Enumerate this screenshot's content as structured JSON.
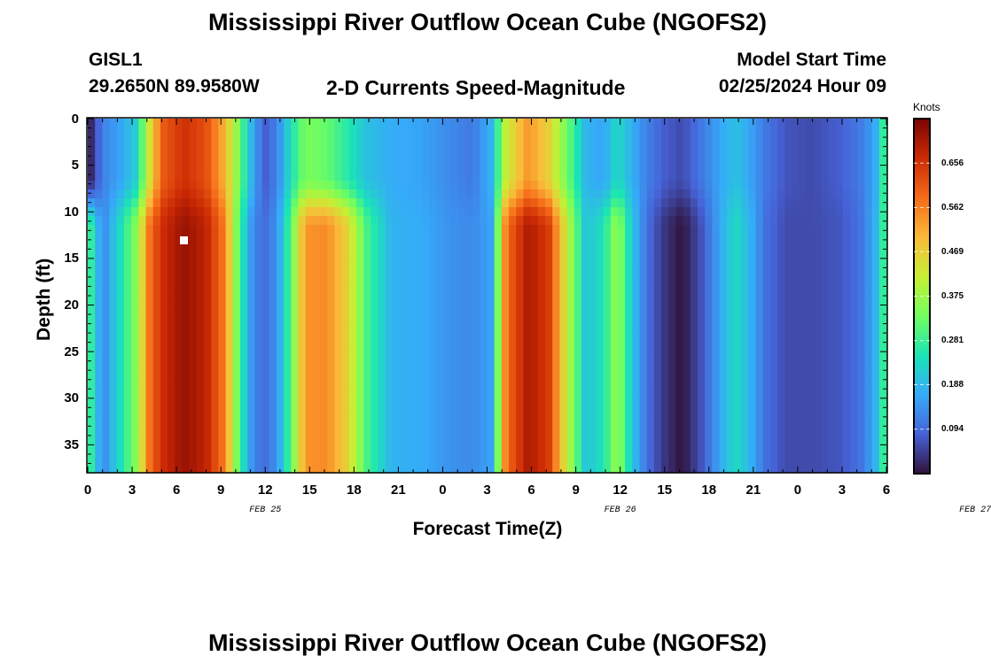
{
  "chart_data": {
    "type": "heatmap",
    "title": "Mississippi River Outflow Ocean Cube (NGOFS2)",
    "subtitle": "2-D Currents Speed-Magnitude",
    "station": "GISL1",
    "location": "29.2650N  89.9580W",
    "model_start_label": "Model Start Time",
    "model_start_value": "02/25/2024 Hour 09",
    "xlabel": "Forecast Time(Z)",
    "ylabel": "Depth (ft)",
    "x_range_hours": [
      0,
      54
    ],
    "y_range_ft": [
      0,
      38
    ],
    "x_tick_labels": [
      "0",
      "3",
      "6",
      "9",
      "12",
      "15",
      "18",
      "21",
      "0",
      "3",
      "6",
      "9",
      "12",
      "15",
      "18",
      "21",
      "0",
      "3",
      "6"
    ],
    "y_tick_labels": [
      "0",
      "5",
      "10",
      "15",
      "20",
      "25",
      "30",
      "35"
    ],
    "day_labels": [
      "FEB 25",
      "FEB 26",
      "FEB 27"
    ],
    "colorbar": {
      "units": "Knots",
      "range": [
        0.0,
        0.75
      ],
      "tick_labels": [
        "0.656",
        "0.562",
        "0.469",
        "0.375",
        "0.281",
        "0.188",
        "0.094"
      ]
    },
    "columns": [
      {
        "hour": 0.2,
        "top": 0.02,
        "bottom": 0.28
      },
      {
        "hour": 1.0,
        "top": 0.12,
        "bottom": 0.12
      },
      {
        "hour": 2.2,
        "top": 0.16,
        "bottom": 0.24
      },
      {
        "hour": 3.3,
        "top": 0.22,
        "bottom": 0.36
      },
      {
        "hour": 4.2,
        "top": 0.44,
        "bottom": 0.58
      },
      {
        "hour": 5.0,
        "top": 0.6,
        "bottom": 0.66
      },
      {
        "hour": 6.5,
        "top": 0.66,
        "bottom": 0.72
      },
      {
        "hour": 8.0,
        "top": 0.62,
        "bottom": 0.68
      },
      {
        "hour": 9.3,
        "top": 0.5,
        "bottom": 0.56
      },
      {
        "hour": 10.2,
        "top": 0.34,
        "bottom": 0.3
      },
      {
        "hour": 11.2,
        "top": 0.16,
        "bottom": 0.12
      },
      {
        "hour": 12.0,
        "top": 0.08,
        "bottom": 0.1
      },
      {
        "hour": 12.8,
        "top": 0.12,
        "bottom": 0.14
      },
      {
        "hour": 13.7,
        "top": 0.24,
        "bottom": 0.3
      },
      {
        "hour": 14.7,
        "top": 0.34,
        "bottom": 0.54
      },
      {
        "hour": 16.2,
        "top": 0.32,
        "bottom": 0.55
      },
      {
        "hour": 17.6,
        "top": 0.26,
        "bottom": 0.46
      },
      {
        "hour": 18.8,
        "top": 0.2,
        "bottom": 0.3
      },
      {
        "hour": 20.5,
        "top": 0.17,
        "bottom": 0.18
      },
      {
        "hour": 22.5,
        "top": 0.16,
        "bottom": 0.17
      },
      {
        "hour": 24.5,
        "top": 0.13,
        "bottom": 0.14
      },
      {
        "hour": 26.0,
        "top": 0.11,
        "bottom": 0.13
      },
      {
        "hour": 27.3,
        "top": 0.18,
        "bottom": 0.16
      },
      {
        "hour": 28.3,
        "top": 0.42,
        "bottom": 0.58
      },
      {
        "hour": 29.8,
        "top": 0.54,
        "bottom": 0.7
      },
      {
        "hour": 31.2,
        "top": 0.46,
        "bottom": 0.64
      },
      {
        "hour": 32.5,
        "top": 0.32,
        "bottom": 0.4
      },
      {
        "hour": 33.7,
        "top": 0.18,
        "bottom": 0.2
      },
      {
        "hour": 34.9,
        "top": 0.16,
        "bottom": 0.25
      },
      {
        "hour": 35.8,
        "top": 0.24,
        "bottom": 0.38
      },
      {
        "hour": 36.7,
        "top": 0.18,
        "bottom": 0.22
      },
      {
        "hour": 37.8,
        "top": 0.12,
        "bottom": 0.1
      },
      {
        "hour": 38.9,
        "top": 0.08,
        "bottom": 0.04
      },
      {
        "hour": 40.2,
        "top": 0.06,
        "bottom": 0.0
      },
      {
        "hour": 41.5,
        "top": 0.11,
        "bottom": 0.07
      },
      {
        "hour": 42.7,
        "top": 0.16,
        "bottom": 0.16
      },
      {
        "hour": 43.8,
        "top": 0.2,
        "bottom": 0.24
      },
      {
        "hour": 44.8,
        "top": 0.16,
        "bottom": 0.18
      },
      {
        "hour": 45.8,
        "top": 0.11,
        "bottom": 0.1
      },
      {
        "hour": 47.2,
        "top": 0.07,
        "bottom": 0.06
      },
      {
        "hour": 49.0,
        "top": 0.06,
        "bottom": 0.06
      },
      {
        "hour": 50.8,
        "top": 0.08,
        "bottom": 0.07
      },
      {
        "hour": 52.2,
        "top": 0.11,
        "bottom": 0.1
      },
      {
        "hour": 53.2,
        "top": 0.16,
        "bottom": 0.17
      },
      {
        "hour": 53.9,
        "top": 0.3,
        "bottom": 0.3
      }
    ],
    "colormap": [
      "#30123b",
      "#4662d7",
      "#36aaf9",
      "#1ae4b6",
      "#72fe5e",
      "#c7ef34",
      "#faba39",
      "#f66b19",
      "#cb2a04",
      "#7a0403"
    ]
  }
}
